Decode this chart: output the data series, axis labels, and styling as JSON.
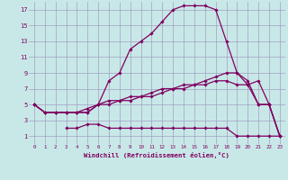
{
  "xlabel": "Windchill (Refroidissement éolien,°C)",
  "bg_color": "#c8e8e8",
  "grid_color": "#a0a0c0",
  "line_color": "#800060",
  "xlim": [
    -0.5,
    23.5
  ],
  "ylim": [
    0,
    18
  ],
  "xticks": [
    0,
    1,
    2,
    3,
    4,
    5,
    6,
    7,
    8,
    9,
    10,
    11,
    12,
    13,
    14,
    15,
    16,
    17,
    18,
    19,
    20,
    21,
    22,
    23
  ],
  "yticks": [
    1,
    3,
    5,
    7,
    9,
    11,
    13,
    15,
    17
  ],
  "series1_x": [
    0,
    1,
    2,
    3,
    4,
    5,
    6,
    7,
    8,
    9,
    10,
    11,
    12,
    13,
    14,
    15,
    16,
    17,
    18,
    19,
    20,
    21,
    22,
    23
  ],
  "series1_y": [
    5,
    4,
    4,
    4,
    4,
    4,
    5,
    8,
    9,
    12,
    13,
    14,
    15.5,
    17,
    17.5,
    17.5,
    17.5,
    17,
    13,
    9,
    8,
    5,
    5,
    1
  ],
  "series2_x": [
    0,
    1,
    2,
    3,
    4,
    5,
    6,
    7,
    8,
    9,
    10,
    11,
    12,
    13,
    14,
    15,
    16,
    17,
    18,
    19,
    20,
    21,
    22,
    23
  ],
  "series2_y": [
    5,
    4,
    4,
    4,
    4,
    4,
    5,
    5.5,
    5.5,
    6,
    6,
    6.5,
    7,
    7,
    7.5,
    7.5,
    8,
    8.5,
    9,
    9,
    7.5,
    8,
    5,
    1
  ],
  "series3_x": [
    0,
    1,
    2,
    3,
    4,
    5,
    6,
    7,
    8,
    9,
    10,
    11,
    12,
    13,
    14,
    15,
    16,
    17,
    18,
    19,
    20,
    21,
    22,
    23
  ],
  "series3_y": [
    5,
    4,
    4,
    4,
    4,
    4.5,
    5,
    5,
    5.5,
    5.5,
    6,
    6,
    6.5,
    7,
    7,
    7.5,
    7.5,
    8,
    8,
    7.5,
    7.5,
    5,
    5,
    1
  ],
  "series4_x": [
    3,
    4,
    5,
    6,
    7,
    8,
    9,
    10,
    11,
    12,
    13,
    14,
    15,
    16,
    17,
    18,
    19,
    20,
    21,
    22,
    23
  ],
  "series4_y": [
    2,
    2,
    2.5,
    2.5,
    2,
    2,
    2,
    2,
    2,
    2,
    2,
    2,
    2,
    2,
    2,
    2,
    1,
    1,
    1,
    1,
    1
  ]
}
